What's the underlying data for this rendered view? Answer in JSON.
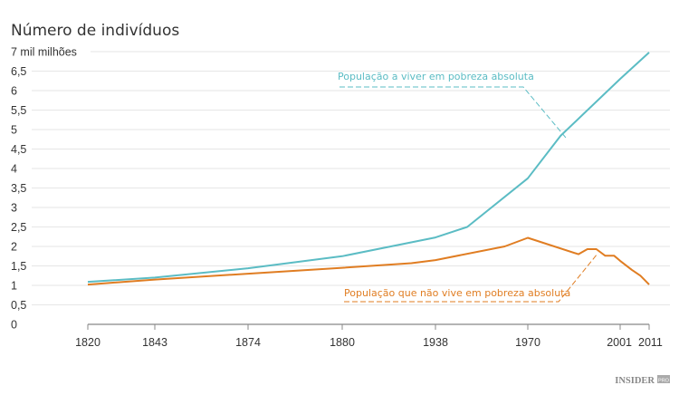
{
  "chart_data": {
    "type": "line",
    "title": "Número de indivíduos",
    "y_unit_label": "7 mil milhões",
    "ylim": [
      0,
      7
    ],
    "yticks": [
      0,
      0.5,
      1,
      1.5,
      2,
      2.5,
      3,
      3.5,
      4,
      4.5,
      5,
      5.5,
      6,
      6.5,
      7
    ],
    "ytick_labels": [
      "0",
      "0,5",
      "1",
      "1,5",
      "2",
      "2,5",
      "3",
      "3,5",
      "4",
      "4,5",
      "5",
      "5,5",
      "6",
      "6,5",
      "7 mil milhões"
    ],
    "xticks": [
      1820,
      1843,
      1874,
      1880,
      1938,
      1970,
      2001,
      2011
    ],
    "xtick_labels": [
      "1820",
      "1843",
      "1874",
      "1880",
      "1938",
      "1970",
      "2001",
      "2011"
    ],
    "grid": true,
    "series": [
      {
        "name": "População a viver em pobreza absoluta",
        "color": "#5bbcc4",
        "x": [
          1820,
          1843,
          1874,
          1880,
          1938,
          1949,
          1970,
          1981,
          2001,
          2011
        ],
        "y": [
          1.09,
          1.2,
          1.44,
          1.75,
          2.23,
          2.5,
          3.75,
          4.84,
          6.3,
          6.98
        ]
      },
      {
        "name": "População que não vive em pobreza absoluta",
        "color": "#e07d22",
        "x": [
          1820,
          1843,
          1874,
          1880,
          1923,
          1938,
          1962,
          1970,
          1987,
          1990,
          1993,
          1996,
          1999,
          2001,
          2005,
          2008,
          2011
        ],
        "y": [
          1.02,
          1.15,
          1.3,
          1.45,
          1.57,
          1.65,
          2.0,
          2.22,
          1.8,
          1.93,
          1.93,
          1.76,
          1.76,
          1.63,
          1.4,
          1.25,
          1.02
        ]
      }
    ]
  },
  "branding": {
    "logo": "INSIDER PRO"
  }
}
